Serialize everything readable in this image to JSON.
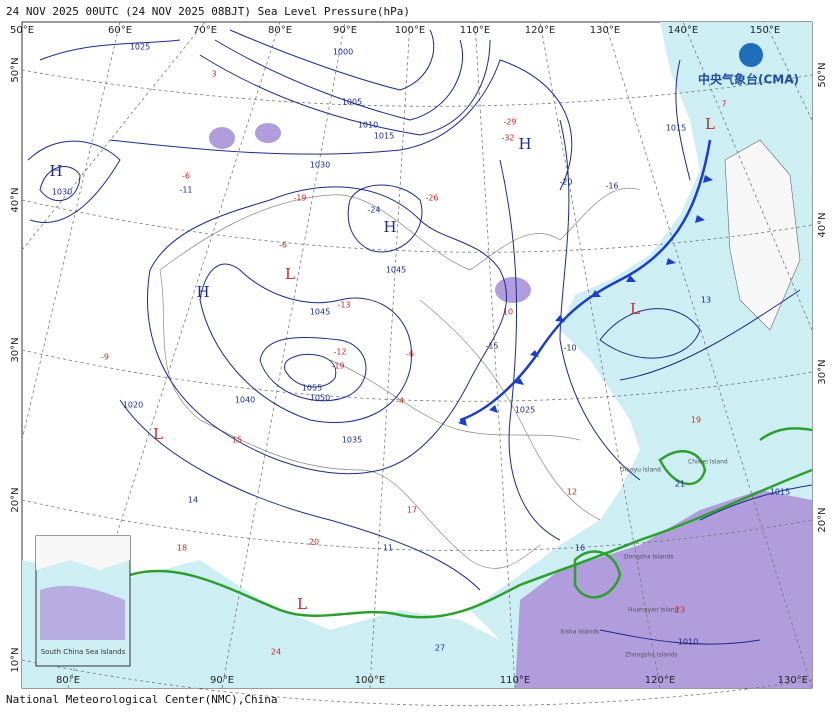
{
  "header": {
    "title": "24 NOV 2025 00UTC (24 NOV 2025 08BJT) Sea Level Pressure(hPa)"
  },
  "logo": {
    "text": "中央气象台(CMA)"
  },
  "footer": {
    "text": "National Meteorological Center(NMC),China"
  },
  "top_lon_labels": [
    "50°E",
    "60°E",
    "70°E",
    "80°E",
    "90°E",
    "100°E",
    "110°E",
    "120°E",
    "130°E",
    "140°E",
    "150°E"
  ],
  "bottom_lon_labels": [
    "80°E",
    "90°E",
    "100°E",
    "110°E",
    "120°E",
    "130°E"
  ],
  "left_lat_labels": [
    "50°N",
    "40°N",
    "30°N",
    "20°N",
    "10°N"
  ],
  "right_lat_labels": [
    "50°N",
    "40°N",
    "30°N",
    "20°N"
  ],
  "isobar_labels": [
    "1025",
    "1000",
    "1005",
    "1010",
    "1015",
    "1030",
    "1030",
    "1045",
    "1045",
    "1040",
    "1050",
    "1055",
    "1035",
    "1020",
    "1025",
    "1015",
    "1010",
    "1015"
  ],
  "centers": [
    "H",
    "H",
    "H",
    "H",
    "L",
    "L",
    "L",
    "L",
    "L"
  ],
  "station_values": [
    "-6",
    "-11",
    "-19",
    "-26",
    "-24",
    "-29",
    "-32",
    "-20",
    "-6",
    "-13",
    "-16",
    "-12",
    "-19",
    "-15",
    "-9",
    "-6",
    "-10",
    "-4",
    "10",
    "14",
    "15",
    "12",
    "16",
    "18",
    "20",
    "21",
    "23",
    "24",
    "27",
    "7",
    "3",
    "13",
    "19",
    "17",
    "11"
  ],
  "inset": {
    "label": "South China Sea Islands"
  },
  "island_labels": [
    "Diaoyu Island",
    "Chiwei Island",
    "Dongsha Islands",
    "Huangyan Island",
    "Zhongsha Islands",
    "Xisha Islands"
  ]
}
